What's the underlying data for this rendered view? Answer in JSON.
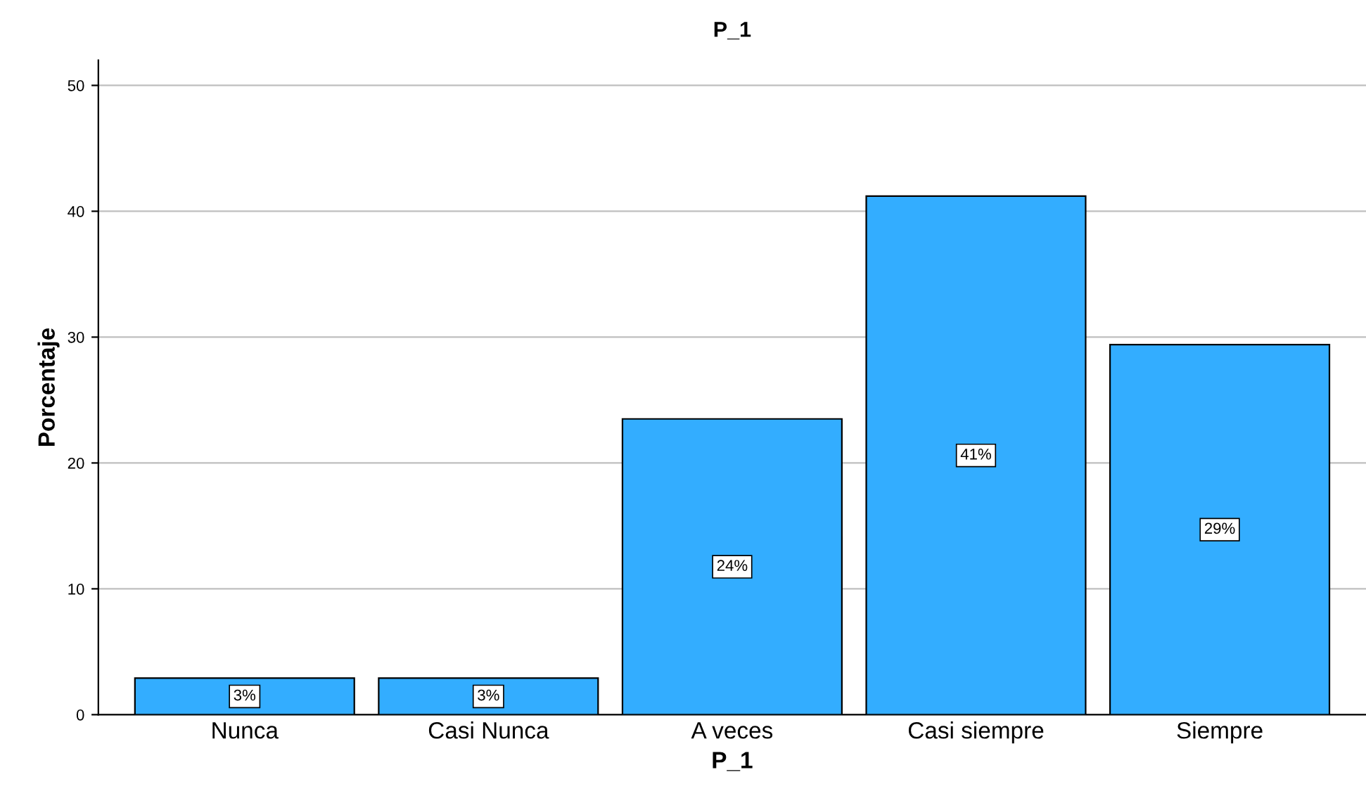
{
  "chart_data": {
    "type": "bar",
    "title": "P_1",
    "xlabel": "P_1",
    "ylabel": "Porcentaje",
    "categories": [
      "Nunca",
      "Casi Nunca",
      "A veces",
      "Casi siempre",
      "Siempre"
    ],
    "values": [
      2.9,
      2.9,
      23.5,
      41.2,
      29.4
    ],
    "value_labels": [
      "3%",
      "3%",
      "24%",
      "41%",
      "29%"
    ],
    "color": "#33adff",
    "ylim": [
      0,
      52
    ],
    "yticks": [
      0,
      10,
      20,
      30,
      40,
      50
    ],
    "grid": "y",
    "legend": false
  }
}
